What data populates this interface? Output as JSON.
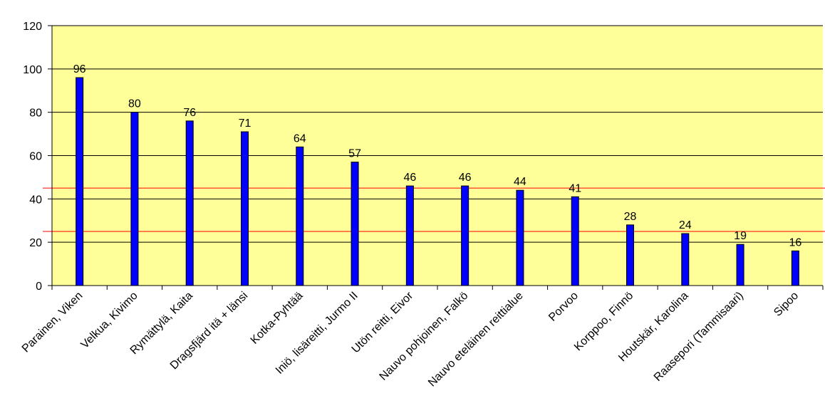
{
  "chart_data": {
    "type": "bar",
    "title": "",
    "xlabel": "",
    "ylabel": "",
    "ylim": [
      0,
      120
    ],
    "yticks": [
      0,
      20,
      40,
      60,
      80,
      100,
      120
    ],
    "grid": true,
    "legend": "none",
    "categories": [
      "Parainen, Viken",
      "Velkua, Kivimo",
      "Rymättylä, Kaita",
      "Dragsfjärd itä + länsi",
      "Kotka-Pyhtää",
      "Iniö, lisäreitti, Jurmo II",
      "Utön reitti, Eivor",
      "Nauvo pohjoinen, Falkö",
      "Nauvo eteläinen reittialue",
      "Porvoo",
      "Korppoo, Finnö",
      "Houtskär, Karolina",
      "Raasepori (Tammisaari)",
      "Sipoo"
    ],
    "values": [
      96,
      80,
      76,
      71,
      64,
      57,
      46,
      46,
      44,
      41,
      28,
      24,
      19,
      16
    ],
    "reference_lines": [
      45,
      25
    ],
    "colors": {
      "bar": "#0000ff",
      "bar_outline": "#000000",
      "plot_background": "#ffff99",
      "gridline": "#000000",
      "reference_line": "#ff0000"
    }
  }
}
